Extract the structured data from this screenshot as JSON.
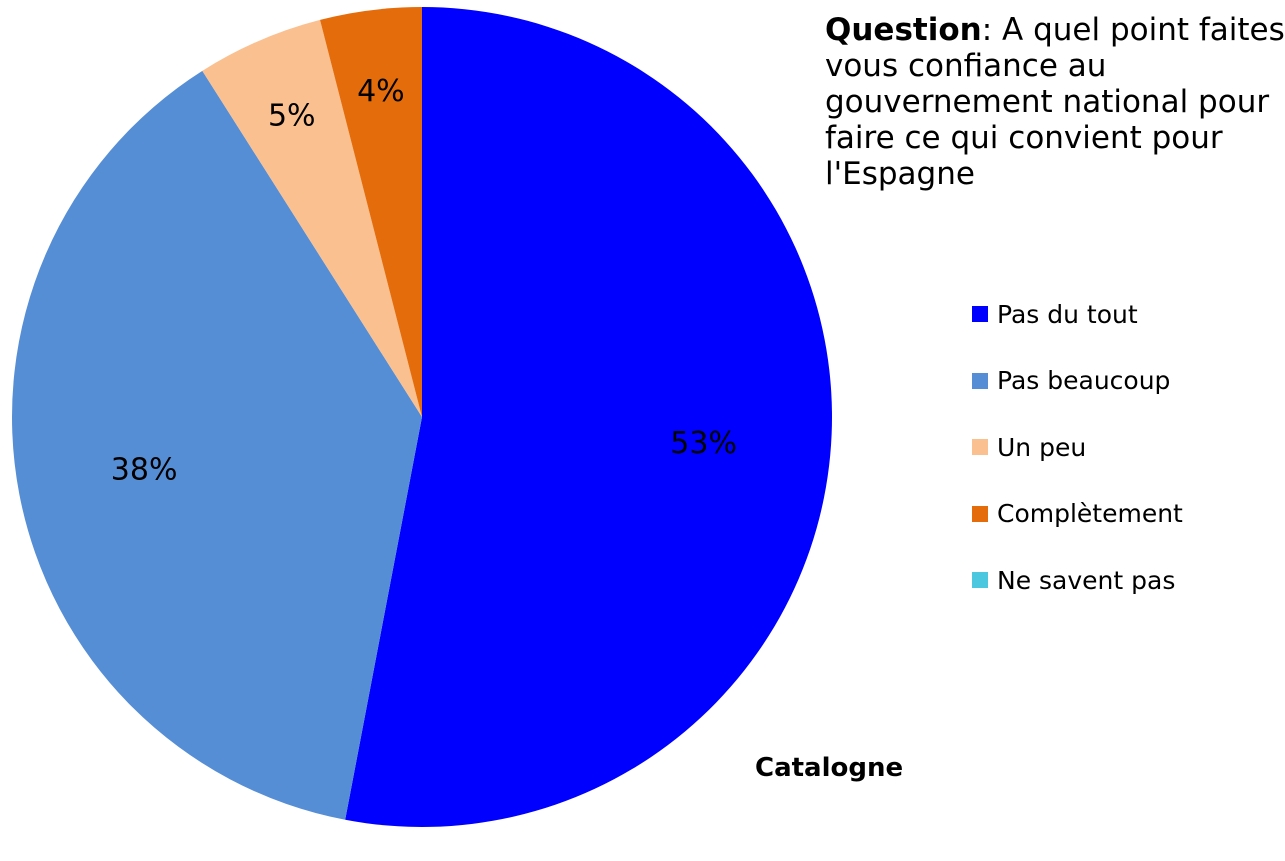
{
  "question": {
    "head": "Question",
    "body": ": A quel point faites vous confiance au gouvernement national pour faire ce qui convient pour l'Espagne"
  },
  "region_label": "Catalogne",
  "chart_data": {
    "type": "pie",
    "start": "12 o'clock",
    "direction": "clockwise",
    "slices": [
      {
        "label": "Pas du tout",
        "value": 53,
        "value_label": "53%",
        "color": "#0000ff"
      },
      {
        "label": "Pas beaucoup",
        "value": 38,
        "value_label": "38%",
        "color": "#558ed5"
      },
      {
        "label": "Un peu",
        "value": 5,
        "value_label": "5%",
        "color": "#fac090"
      },
      {
        "label": "Complètement",
        "value": 4,
        "value_label": "4%",
        "color": "#e46c0a"
      },
      {
        "label": "Ne savent pas",
        "value": 0,
        "value_label": "",
        "color": "#4bc8e0"
      }
    ],
    "legend_position": "right"
  }
}
